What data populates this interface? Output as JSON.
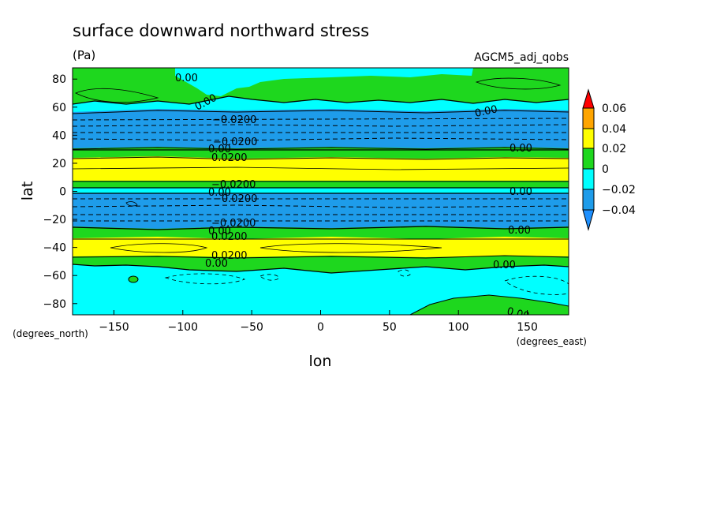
{
  "chart_data": {
    "type": "heatmap",
    "subtype": "filled-contour map",
    "title": "surface downward northward stress",
    "units": "(Pa)",
    "dataset": "AGCM5_adj_qobs",
    "xlabel": "lon",
    "ylabel": "lat",
    "x_units": "(degrees_east)",
    "y_units": "(degrees_north)",
    "xlim": [
      -180,
      180
    ],
    "ylim": [
      -88,
      88
    ],
    "x_ticks": [
      -150,
      -100,
      -50,
      0,
      50,
      100,
      150
    ],
    "y_ticks": [
      80,
      60,
      40,
      20,
      0,
      -20,
      -40,
      -60,
      -80
    ],
    "x_tick_labels": [
      "−150",
      "−100",
      "−50",
      "0",
      "50",
      "100",
      "150"
    ],
    "y_tick_labels": [
      "80",
      "60",
      "40",
      "20",
      "0",
      "−20",
      "−40",
      "−60",
      "−80"
    ],
    "colorbar": {
      "labels": [
        "0.06",
        "0.04",
        "0.02",
        "0",
        "−0.02",
        "−0.04"
      ],
      "levels": [
        -0.04,
        -0.02,
        0,
        0.02,
        0.04,
        0.06
      ],
      "colors": {
        "below_-0.04": "#1e90ff",
        "-0.04_to_-0.02": "#1e9cea",
        "-0.02_to_0": "#00ffff",
        "0_to_0.02": "#1ed71e",
        "0.02_to_0.04": "#ffff00",
        "0.04_to_0.06": "#ffa500",
        "above_0.06": "#ff0000"
      }
    },
    "zonal_bands": [
      {
        "lat_from": 88,
        "lat_to": 62,
        "value": "0 to 0.02 (cyan near 80N, -70 to 0)"
      },
      {
        "lat_from": 62,
        "lat_to": 56,
        "value": "-0.02 to 0"
      },
      {
        "lat_from": 56,
        "lat_to": 32,
        "value": "-0.04 to -0.02"
      },
      {
        "lat_from": 32,
        "lat_to": 24,
        "value": "0 to 0.02"
      },
      {
        "lat_from": 24,
        "lat_to": 6,
        "value": "0.02 to 0.04"
      },
      {
        "lat_from": 6,
        "lat_to": 2,
        "value": "0 to 0.02"
      },
      {
        "lat_from": 2,
        "lat_to": -2,
        "value": "-0.02 to 0"
      },
      {
        "lat_from": -2,
        "lat_to": -24,
        "value": "-0.04 to -0.02"
      },
      {
        "lat_from": -24,
        "lat_to": -34,
        "value": "0 to 0.02"
      },
      {
        "lat_from": -34,
        "lat_to": -44,
        "value": "0.02 to 0.04"
      },
      {
        "lat_from": -44,
        "lat_to": -52,
        "value": "0 to 0.02"
      },
      {
        "lat_from": -52,
        "lat_to": -88,
        "value": "-0.02 to 0 (green patch near 80S, 60 to 180)"
      }
    ],
    "contour_labels": [
      "0.00",
      "0.00",
      "0.00",
      "−0.0200",
      "−0.0200",
      "0.00",
      "0.00",
      "0.0200",
      "−0.0200",
      "0.00",
      "−0.0200",
      "0.00",
      "−0.0200",
      "0.00",
      "0.0200",
      "0.00",
      "0.0200",
      "0.00",
      "0.00",
      "0.00"
    ]
  }
}
